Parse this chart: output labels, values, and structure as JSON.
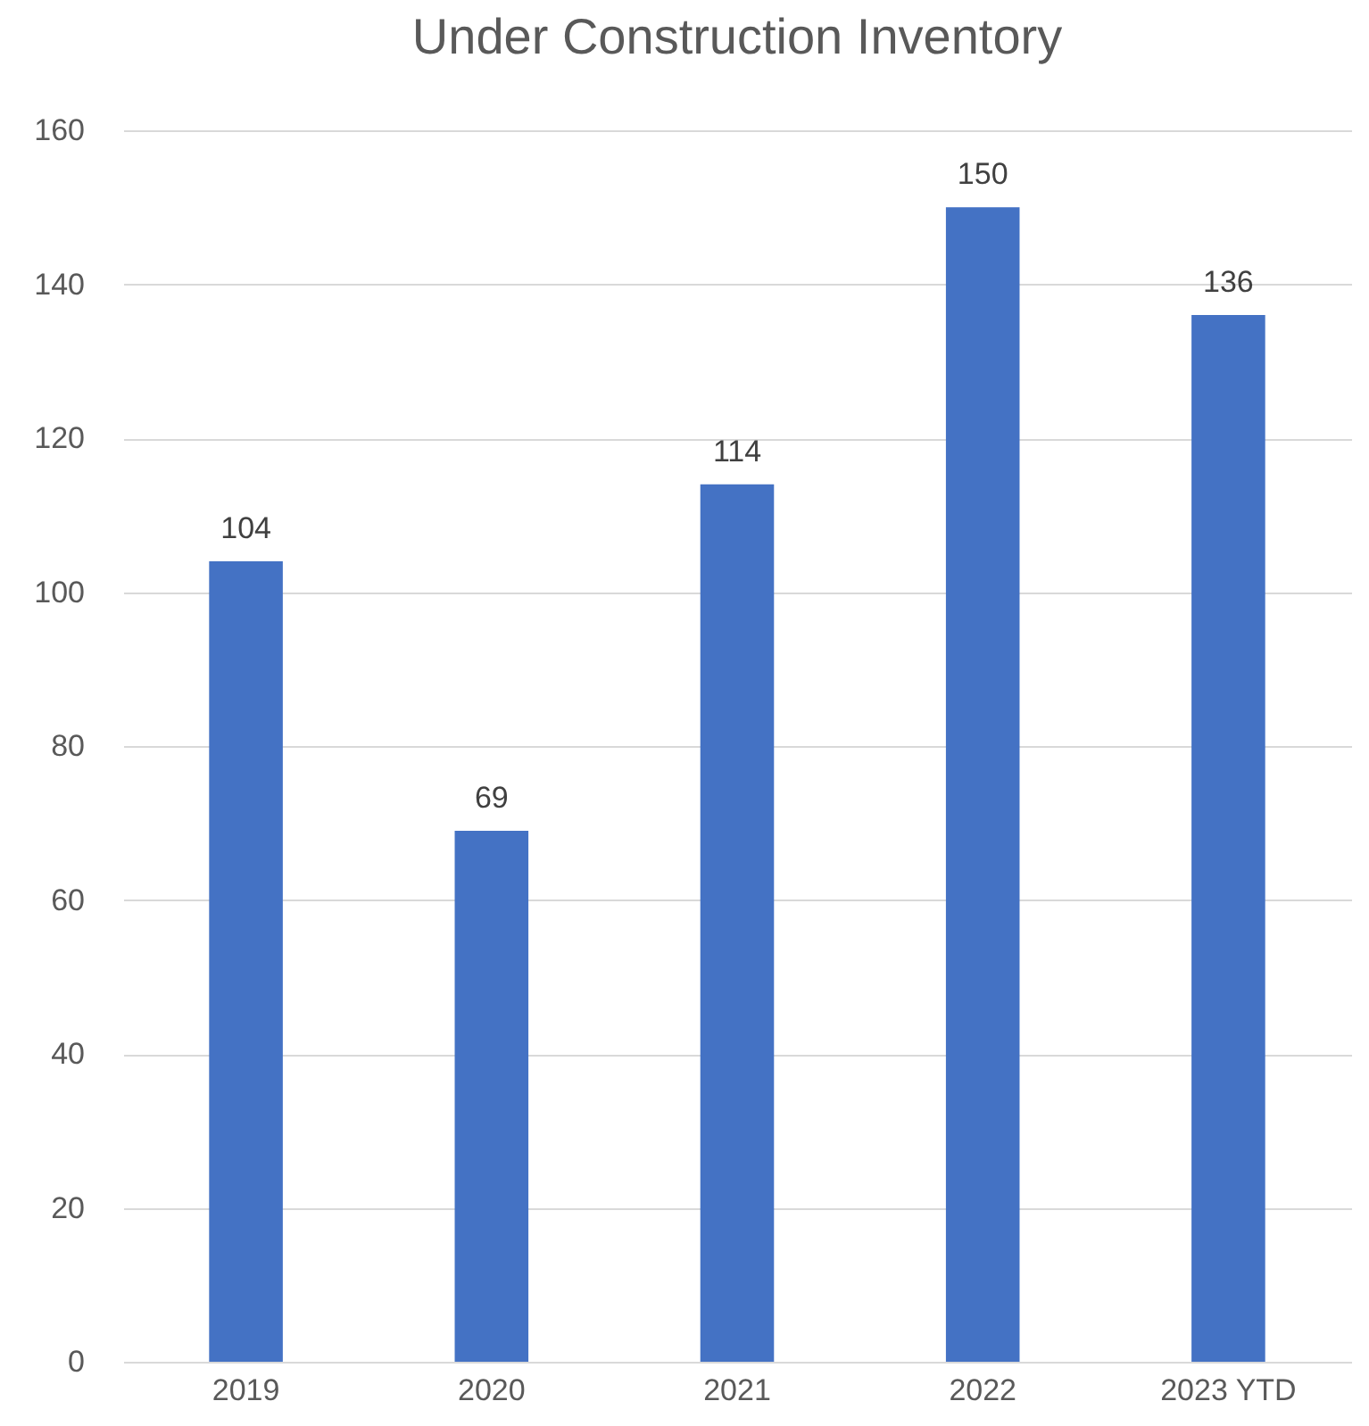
{
  "chart_data": {
    "type": "bar",
    "title": "Under Construction Inventory",
    "categories": [
      "2019",
      "2020",
      "2021",
      "2022",
      "2023 YTD"
    ],
    "values": [
      104,
      69,
      114,
      150,
      136
    ],
    "color": "#4472c4",
    "ylim": [
      0,
      160
    ],
    "yticks": [
      0,
      20,
      40,
      60,
      80,
      100,
      120,
      140,
      160
    ],
    "grid": "y",
    "data_labels": true
  }
}
